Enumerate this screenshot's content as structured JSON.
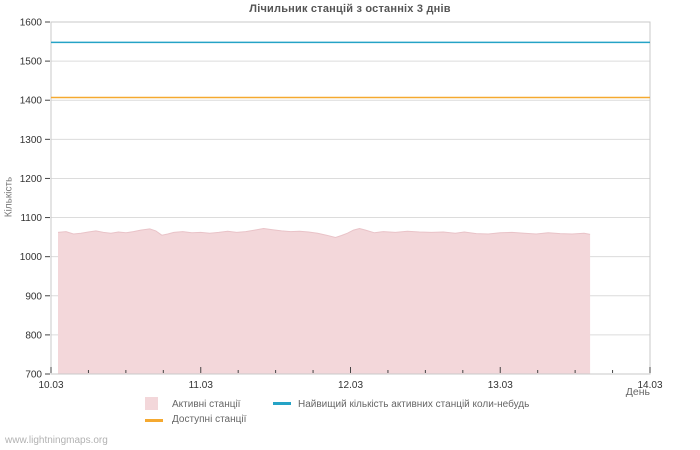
{
  "page": {
    "watermark": "www.lightningmaps.org"
  },
  "chart_data": {
    "type": "area",
    "title": "Лічильник станцій з останніх 3 днів",
    "xlabel": "День",
    "ylabel": "Кількість",
    "xlim": [
      0,
      4
    ],
    "ylim": [
      700,
      1600
    ],
    "x_ticks": [
      {
        "value": 0,
        "label": "10.03"
      },
      {
        "value": 1,
        "label": "11.03"
      },
      {
        "value": 2,
        "label": "12.03"
      },
      {
        "value": 3,
        "label": "13.03"
      },
      {
        "value": 4,
        "label": "14.03"
      }
    ],
    "x_minor_step": 0.25,
    "y_ticks": [
      700,
      800,
      900,
      1000,
      1100,
      1200,
      1300,
      1400,
      1500,
      1600
    ],
    "grid": "horizontal",
    "legend_position": "bottom",
    "colors": {
      "grid": "#dcdcdc",
      "border": "#c9c9c9",
      "tick": "#444444"
    },
    "series": [
      {
        "id": "active",
        "name": "Активні станції",
        "type": "area",
        "color": "#f3d7da",
        "edge_color": "#e9c3c8",
        "points": [
          [
            0.047,
            1062
          ],
          [
            0.1,
            1064
          ],
          [
            0.15,
            1058
          ],
          [
            0.2,
            1060
          ],
          [
            0.25,
            1063
          ],
          [
            0.3,
            1066
          ],
          [
            0.35,
            1062
          ],
          [
            0.4,
            1060
          ],
          [
            0.45,
            1063
          ],
          [
            0.5,
            1061
          ],
          [
            0.55,
            1064
          ],
          [
            0.6,
            1068
          ],
          [
            0.66,
            1071
          ],
          [
            0.7,
            1066
          ],
          [
            0.74,
            1055
          ],
          [
            0.78,
            1058
          ],
          [
            0.82,
            1062
          ],
          [
            0.88,
            1064
          ],
          [
            0.94,
            1061
          ],
          [
            1.0,
            1062
          ],
          [
            1.06,
            1060
          ],
          [
            1.12,
            1062
          ],
          [
            1.18,
            1065
          ],
          [
            1.24,
            1062
          ],
          [
            1.3,
            1064
          ],
          [
            1.36,
            1068
          ],
          [
            1.42,
            1072
          ],
          [
            1.48,
            1069
          ],
          [
            1.54,
            1066
          ],
          [
            1.6,
            1064
          ],
          [
            1.66,
            1065
          ],
          [
            1.72,
            1063
          ],
          [
            1.78,
            1060
          ],
          [
            1.84,
            1055
          ],
          [
            1.9,
            1049
          ],
          [
            1.94,
            1054
          ],
          [
            1.98,
            1060
          ],
          [
            2.02,
            1068
          ],
          [
            2.06,
            1072
          ],
          [
            2.1,
            1068
          ],
          [
            2.16,
            1061
          ],
          [
            2.22,
            1064
          ],
          [
            2.3,
            1062
          ],
          [
            2.38,
            1065
          ],
          [
            2.46,
            1063
          ],
          [
            2.54,
            1062
          ],
          [
            2.62,
            1063
          ],
          [
            2.7,
            1060
          ],
          [
            2.76,
            1063
          ],
          [
            2.84,
            1059
          ],
          [
            2.92,
            1058
          ],
          [
            3.0,
            1061
          ],
          [
            3.08,
            1062
          ],
          [
            3.16,
            1060
          ],
          [
            3.24,
            1058
          ],
          [
            3.32,
            1061
          ],
          [
            3.4,
            1059
          ],
          [
            3.48,
            1058
          ],
          [
            3.56,
            1060
          ],
          [
            3.6,
            1057
          ]
        ]
      },
      {
        "id": "highest",
        "name": "Найвищий кількість активних станцій коли-небудь",
        "type": "hline",
        "color": "#25a3c6",
        "value": 1548
      },
      {
        "id": "available",
        "name": "Доступні станції",
        "type": "hline",
        "color": "#f5a930",
        "value": 1407
      }
    ]
  }
}
